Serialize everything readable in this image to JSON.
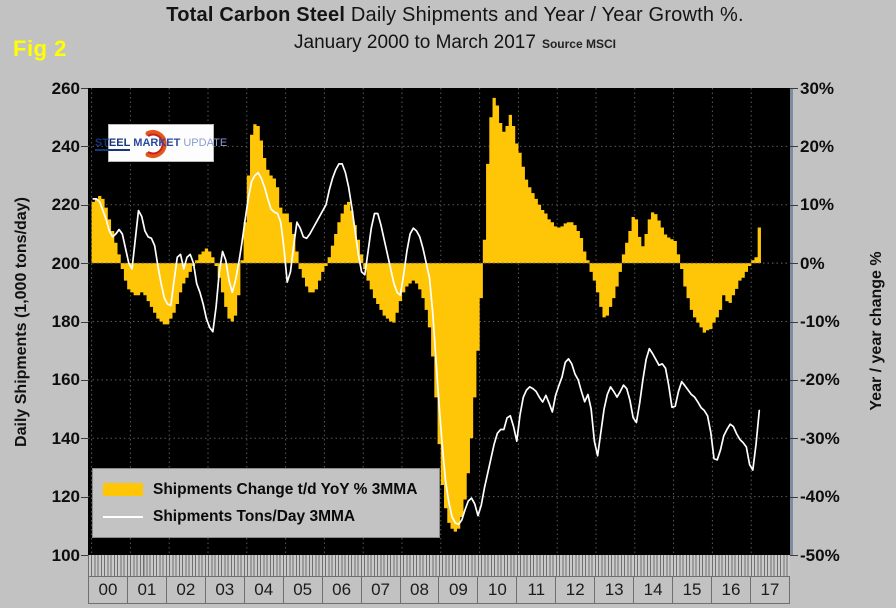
{
  "figure_label": "Fig 2",
  "title": {
    "bold": "Total Carbon Steel",
    "rest": " Daily Shipments and Year / Year Growth %.",
    "line2": "January 2000 to March 2017",
    "source": "Source MSCI"
  },
  "logo": {
    "word1": "STEEL",
    "word2": "MARKET",
    "word3": "UPDATE"
  },
  "legend": {
    "items": [
      {
        "label": "Shipments Change t/d YoY % 3MMA",
        "swatch": "bar",
        "color": "#FFC608"
      },
      {
        "label": "Shipments Tons/Day 3MMA",
        "swatch": "line",
        "color": "#FFFFFF"
      }
    ]
  },
  "colors": {
    "background": "#C2C2C2",
    "plot_background": "#000000",
    "bar": "#FFC608",
    "line": "#FFFFFF",
    "grid": "#595959",
    "figure_label": "#FFFF00",
    "right_spine": "#7F8BA1"
  },
  "chart_data": {
    "type": "combo",
    "subtypes": [
      "bar",
      "line"
    ],
    "title": "Total Carbon Steel Daily Shipments and Year / Year Growth %. January 2000 to March 2017",
    "source": "MSCI",
    "grid": true,
    "legend_position": "inside-bottom-left",
    "x_axis": {
      "unit": "month",
      "start": "2000-01",
      "end": "2017-03",
      "year_tick_labels": [
        "00",
        "01",
        "02",
        "03",
        "04",
        "05",
        "06",
        "07",
        "08",
        "09",
        "10",
        "11",
        "12",
        "13",
        "14",
        "15",
        "16",
        "17"
      ],
      "axis_span_years": [
        "2000",
        "2018"
      ]
    },
    "left_axis": {
      "title": "Daily Shipments (1,000 tons/day)",
      "range": [
        100,
        260
      ],
      "ticks": [
        260,
        240,
        220,
        200,
        180,
        160,
        140,
        120,
        100
      ]
    },
    "right_axis": {
      "title": "Year / year change %",
      "range": [
        -50,
        30
      ],
      "ticks": [
        "30%",
        "20%",
        "10%",
        "0%",
        "-10%",
        "-20%",
        "-30%",
        "-40%",
        "-50%"
      ],
      "tick_values": [
        30,
        20,
        10,
        0,
        -10,
        -20,
        -30,
        -40,
        -50
      ]
    },
    "series": [
      {
        "name": "Shipments Change t/d YoY % 3MMA",
        "type": "bar",
        "axis": "right",
        "unit": "percent",
        "color": "#FFC608",
        "values_by_year": {
          "2000": [
            10.5,
            11,
            11.5,
            11,
            9.5,
            7.5,
            5.5,
            3.5,
            1.5,
            -1,
            -3,
            -4.5
          ],
          "2001": [
            -5,
            -5.5,
            -5.5,
            -5,
            -5.5,
            -6.5,
            -7.5,
            -8.5,
            -9.5,
            -10,
            -10.5,
            -10.5
          ],
          "2002": [
            -9.5,
            -8.5,
            -7,
            -5,
            -3.5,
            -2.5,
            -1.5,
            -0.5,
            0.5,
            1.5,
            2,
            2.5
          ],
          "2003": [
            2,
            1,
            -0.5,
            -2.5,
            -5,
            -7.5,
            -9.5,
            -10,
            -9,
            -5.5,
            0.5,
            7
          ],
          "2004": [
            15,
            22,
            23.8,
            23.5,
            21,
            18,
            16,
            15,
            14.5,
            13,
            9.5,
            8.5
          ],
          "2005": [
            8.5,
            7,
            5,
            2,
            -1,
            -2.5,
            -4,
            -5,
            -5,
            -4.5,
            -3,
            -1.5
          ],
          "2006": [
            -0.5,
            1,
            3,
            5,
            7,
            8.5,
            10,
            10.5,
            9,
            6.5,
            4,
            1.5
          ],
          "2007": [
            -1,
            -3,
            -4.5,
            -6,
            -7,
            -8,
            -9,
            -9.5,
            -10,
            -10.2,
            -8.5,
            -6.5
          ],
          "2008": [
            -5,
            -4,
            -3.5,
            -3,
            -3.5,
            -4.5,
            -6,
            -8,
            -11,
            -16,
            -23,
            -31
          ],
          "2009": [
            -38,
            -42,
            -44.5,
            -45.5,
            -46,
            -45.5,
            -43.5,
            -40.5,
            -36,
            -30,
            -23,
            -15
          ],
          "2010": [
            -6,
            4,
            17,
            25,
            28.3,
            27,
            24,
            22.5,
            23.5,
            25.4,
            23.5,
            20.5
          ],
          "2011": [
            18.9,
            16.5,
            14.3,
            13,
            12,
            11,
            10,
            9.1,
            8.5,
            7.5,
            7,
            6.3
          ],
          "2012": [
            6.1,
            6.3,
            6.8,
            7,
            7,
            6.5,
            5.5,
            4.3,
            2,
            0.5,
            -1.5,
            -3
          ],
          "2013": [
            -5,
            -7.5,
            -9.3,
            -9,
            -7.5,
            -6,
            -4,
            -1.5,
            1.5,
            3.5,
            5.5,
            7.9
          ],
          "2014": [
            7.5,
            4.5,
            2.9,
            5,
            7.5,
            8.7,
            8.4,
            7.3,
            6.1,
            4.9,
            4.4,
            4.1
          ],
          "2015": [
            3.8,
            1.5,
            -1,
            -4,
            -6,
            -8,
            -9.3,
            -10.2,
            -11,
            -11.9,
            -11.5,
            -11.3
          ],
          "2016": [
            -10.2,
            -9.3,
            -8,
            -5.5,
            -6.5,
            -6.8,
            -5.5,
            -4.4,
            -3,
            -2.5,
            -1.5,
            -0.5
          ],
          "2017": [
            0.5,
            1,
            6.1
          ]
        }
      },
      {
        "name": "Shipments Tons/Day 3MMA",
        "type": "line",
        "axis": "left",
        "unit": "1,000 tons/day",
        "color": "#FFFFFF",
        "values_by_year": {
          "2000": [
            222,
            222,
            221,
            218,
            215,
            211,
            209,
            210,
            211.5,
            210,
            205,
            200
          ],
          "2001": [
            198,
            208,
            218,
            216,
            211,
            209,
            208.5,
            206,
            199,
            193,
            188,
            186
          ],
          "2002": [
            185.5,
            194,
            202,
            203,
            198,
            202,
            203,
            200,
            193,
            190,
            186,
            181
          ],
          "2003": [
            178,
            176.5,
            185,
            197,
            204,
            201,
            194,
            190,
            194,
            200,
            207,
            215
          ],
          "2004": [
            222.5,
            228,
            230,
            231,
            229,
            226,
            222,
            218.5,
            217.5,
            217,
            214,
            205
          ],
          "2005": [
            193.5,
            197,
            206,
            214,
            212,
            209,
            208.5,
            210,
            212,
            214,
            216,
            218
          ],
          "2006": [
            220,
            225,
            229,
            232,
            234,
            234,
            231,
            226,
            219,
            211,
            203,
            197
          ],
          "2007": [
            196,
            204,
            212,
            217,
            217,
            213,
            208,
            203,
            198,
            193,
            190,
            189
          ],
          "2008": [
            196,
            204,
            210,
            212,
            211,
            209,
            205,
            200,
            195,
            183,
            167,
            151
          ],
          "2009": [
            137,
            125,
            118,
            113,
            111,
            110.5,
            112,
            115.5,
            118.5,
            119.5,
            117.5,
            113.5
          ],
          "2010": [
            117,
            123,
            128,
            133,
            138,
            141.7,
            143,
            143,
            147,
            147.7,
            144,
            139
          ],
          "2011": [
            148,
            154,
            156.5,
            157.6,
            157,
            156,
            154,
            152.4,
            154.7,
            152,
            149,
            154.7
          ],
          "2012": [
            158,
            161,
            166,
            167.2,
            165.5,
            162,
            160,
            156,
            152.5,
            155,
            150,
            139
          ],
          "2013": [
            134,
            142,
            150,
            155,
            157.6,
            156,
            154.1,
            156,
            158.2,
            157,
            153,
            147
          ],
          "2014": [
            145.4,
            152,
            160,
            167,
            170.7,
            169,
            167,
            165,
            165.5,
            164,
            158,
            150.6
          ],
          "2015": [
            151,
            156,
            159.4,
            158,
            156.5,
            155,
            154.1,
            152.4,
            150.5,
            149.5,
            147.7,
            142
          ],
          "2016": [
            133,
            132.6,
            136,
            140.8,
            143,
            144.8,
            144,
            141.5,
            139.6,
            138.5,
            137,
            131
          ],
          "2017": [
            129.1,
            138,
            149.5
          ]
        }
      }
    ]
  }
}
